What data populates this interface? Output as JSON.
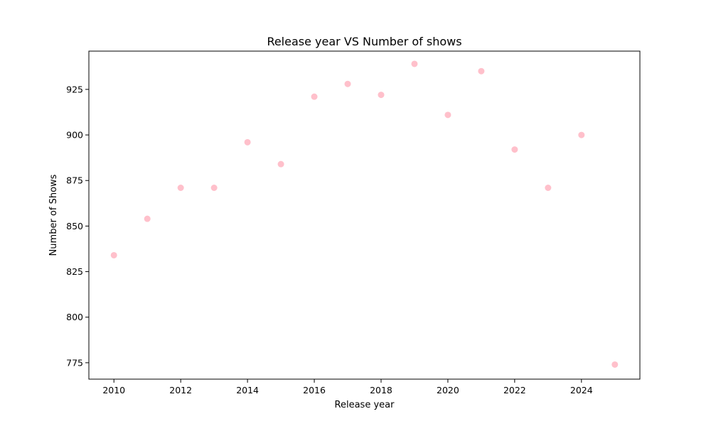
{
  "chart_data": {
    "type": "scatter",
    "title": "Release year VS Number of shows",
    "xlabel": "Release year",
    "ylabel": "Number of Shows",
    "x": [
      2010,
      2011,
      2012,
      2013,
      2014,
      2015,
      2016,
      2017,
      2018,
      2019,
      2020,
      2021,
      2022,
      2023,
      2024,
      2025
    ],
    "y": [
      834,
      854,
      871,
      871,
      896,
      884,
      921,
      928,
      922,
      939,
      911,
      935,
      892,
      871,
      900,
      774
    ],
    "xlim": [
      2009.25,
      2025.75
    ],
    "ylim": [
      766,
      946
    ],
    "xticks": [
      2010,
      2012,
      2014,
      2016,
      2018,
      2020,
      2022,
      2024
    ],
    "yticks": [
      775,
      800,
      825,
      850,
      875,
      900,
      925
    ],
    "xtick_labels": [
      "2010",
      "2012",
      "2014",
      "2016",
      "2018",
      "2020",
      "2022",
      "2024"
    ],
    "ytick_labels": [
      "775",
      "800",
      "825",
      "850",
      "875",
      "900",
      "925"
    ],
    "marker_color": "#ffc0cb",
    "grid": false,
    "legend": "none"
  }
}
